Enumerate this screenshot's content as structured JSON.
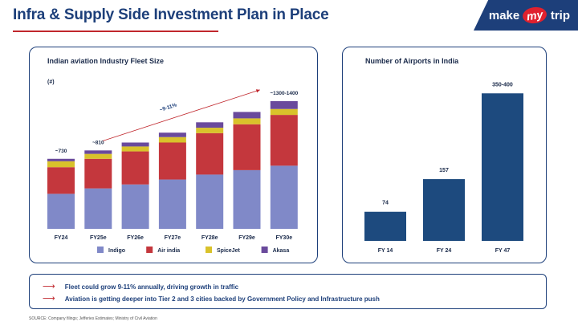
{
  "title": "Infra & Supply Side Investment Plan in Place",
  "logo": {
    "part1": "make",
    "part2": "my",
    "part3": "trip"
  },
  "colors": {
    "indigo": "#8089c8",
    "airindia": "#c4373d",
    "spicejet": "#d9c22b",
    "akasa": "#6a4a9c",
    "navy": "#1d3f7a"
  },
  "chart_data": [
    {
      "type": "bar",
      "stacked": true,
      "title": "Indian aviation Industry Fleet Size",
      "unit_label": "(#)",
      "categories": [
        "FY24",
        "FY25e",
        "FY26e",
        "FY27e",
        "FY28e",
        "FY29e",
        "FY30e"
      ],
      "series": [
        {
          "name": "Indigo",
          "color": "#8089c8",
          "values": [
            355,
            410,
            450,
            500,
            550,
            595,
            640
          ]
        },
        {
          "name": "Air india",
          "color": "#c4373d",
          "values": [
            270,
            300,
            335,
            375,
            420,
            465,
            515
          ]
        },
        {
          "name": "SpiceJet",
          "color": "#d9c22b",
          "values": [
            60,
            50,
            50,
            55,
            55,
            60,
            60
          ]
        },
        {
          "name": "Akasa",
          "color": "#6a4a9c",
          "values": [
            25,
            35,
            40,
            45,
            55,
            65,
            80
          ]
        }
      ],
      "total_labels": [
        {
          "category": "FY24",
          "text": "~730"
        },
        {
          "category": "FY25e",
          "text": "~810"
        },
        {
          "category": "FY30e",
          "text": "~1300-1400"
        }
      ],
      "annotation": "~9-11%",
      "ylim": [
        0,
        1400
      ],
      "legend": "bottom"
    },
    {
      "type": "bar",
      "title": "Number of Airports in India",
      "categories": [
        "FY 14",
        "FY 24",
        "FY 47"
      ],
      "values": [
        74,
        157,
        375
      ],
      "value_labels": [
        "74",
        "157",
        "350-400"
      ],
      "color": "#1d4a7e",
      "ylim": [
        0,
        400
      ]
    }
  ],
  "points": [
    "Fleet could grow 9-11% annually, driving growth in traffic",
    "Aviation is getting deeper into Tier 2 and 3 cities backed by Government Policy and Infrastructure push"
  ],
  "arrow_glyph": "⟶",
  "source": "SOURCE: Company filings; Jefferies Estimates; Ministry of Civil Aviation"
}
